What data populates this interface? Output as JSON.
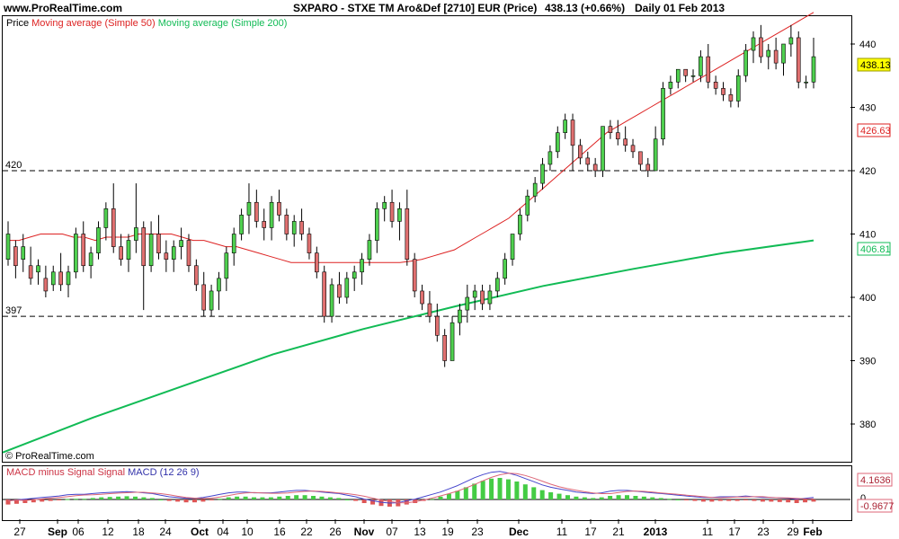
{
  "header": {
    "site": "www.ProRealTime.com",
    "instrument": "SXPARO - STXE TM Aro&Def [2710] EUR (Price)",
    "last_price": "438.13 (+0.66%)",
    "period": "Daily  01 Feb 2013"
  },
  "colors": {
    "up": "#4fd04f",
    "down": "#e07070",
    "ma50": "#dd2222",
    "ma200": "#11bb55",
    "macd": "#4444cc",
    "signal": "#dd6677"
  },
  "price_panel": {
    "legend_price": "Price",
    "legend_ma50": "Moving average (Simple 50)",
    "legend_ma200": "Moving average (Simple 200)",
    "watermark": "© ProRealTime.com",
    "y_ticks": [
      "440",
      "430",
      "420",
      "410",
      "400",
      "390",
      "380"
    ],
    "hlines": [
      {
        "label": "420",
        "value": 420
      },
      {
        "label": "397",
        "value": 397
      }
    ],
    "tags": {
      "price": "438.13",
      "ma50": "426.63",
      "ma200": "406.81"
    }
  },
  "macd_panel": {
    "legend_signal": "MACD minus Signal",
    "legend_signal2": "Signal",
    "legend_macd": "MACD (12 26 9)",
    "tag_high": "4.1636",
    "tag_zero": "0",
    "tag_low": "-0.9677"
  },
  "x_ticks": [
    "27",
    "Sep",
    "06",
    "12",
    "18",
    "24",
    "Oct",
    "04",
    "10",
    "16",
    "22",
    "26",
    "Nov",
    "07",
    "13",
    "19",
    "23",
    "Dec",
    "11",
    "17",
    "21",
    "2013",
    "11",
    "17",
    "23",
    "29",
    "Feb"
  ],
  "chart_data": {
    "type": "candlestick",
    "title": "SXPARO - STXE TM Aro&Def [2710] EUR (Price)",
    "ylim": [
      374,
      450
    ],
    "candles": [
      [
        406,
        412,
        405,
        410
      ],
      [
        408,
        409,
        403,
        405
      ],
      [
        406,
        410,
        404,
        408
      ],
      [
        405,
        408,
        402,
        403
      ],
      [
        404,
        406,
        402,
        405
      ],
      [
        403,
        405,
        400,
        401
      ],
      [
        402,
        405,
        401,
        404
      ],
      [
        404,
        407,
        401,
        402
      ],
      [
        402,
        405,
        400,
        404
      ],
      [
        404,
        411,
        403,
        410
      ],
      [
        410,
        412,
        404,
        405
      ],
      [
        405,
        408,
        403,
        407
      ],
      [
        407,
        412,
        406,
        411
      ],
      [
        411,
        415,
        409,
        414
      ],
      [
        414,
        418,
        407,
        408
      ],
      [
        408,
        410,
        405,
        406
      ],
      [
        406,
        410,
        404,
        409
      ],
      [
        409,
        418,
        407,
        411
      ],
      [
        411,
        412,
        398,
        405
      ],
      [
        405,
        412,
        404,
        410
      ],
      [
        410,
        413,
        406,
        407
      ],
      [
        407,
        409,
        404,
        406
      ],
      [
        406,
        409,
        404,
        408
      ],
      [
        408,
        411,
        406,
        409
      ],
      [
        409,
        410,
        404,
        405
      ],
      [
        405,
        406,
        401,
        402
      ],
      [
        402,
        404,
        397,
        398
      ],
      [
        398,
        402,
        397,
        401
      ],
      [
        401,
        404,
        398,
        403
      ],
      [
        403,
        408,
        401,
        407
      ],
      [
        407,
        411,
        405,
        410
      ],
      [
        410,
        414,
        409,
        413
      ],
      [
        413,
        418,
        410,
        415
      ],
      [
        415,
        417,
        411,
        412
      ],
      [
        412,
        414,
        409,
        411
      ],
      [
        411,
        416,
        409,
        415
      ],
      [
        415,
        417,
        412,
        413
      ],
      [
        413,
        414,
        409,
        410
      ],
      [
        410,
        413,
        408,
        412
      ],
      [
        412,
        414,
        409,
        410
      ],
      [
        410,
        411,
        406,
        407
      ],
      [
        407,
        408,
        403,
        404
      ],
      [
        404,
        405,
        396,
        397
      ],
      [
        397,
        403,
        396,
        402
      ],
      [
        402,
        404,
        399,
        400
      ],
      [
        400,
        404,
        399,
        403
      ],
      [
        403,
        405,
        401,
        404
      ],
      [
        404,
        407,
        402,
        406
      ],
      [
        406,
        410,
        405,
        409
      ],
      [
        409,
        415,
        407,
        414
      ],
      [
        414,
        416,
        412,
        415
      ],
      [
        415,
        417,
        411,
        412
      ],
      [
        412,
        415,
        409,
        414
      ],
      [
        414,
        417,
        405,
        406
      ],
      [
        406,
        407,
        400,
        401
      ],
      [
        401,
        402,
        398,
        399
      ],
      [
        399,
        401,
        396,
        397
      ],
      [
        397,
        399,
        393,
        394
      ],
      [
        394,
        395,
        389,
        390
      ],
      [
        390,
        397,
        390,
        396
      ],
      [
        396,
        399,
        394,
        398
      ],
      [
        398,
        402,
        396,
        400
      ],
      [
        400,
        402,
        398,
        401
      ],
      [
        401,
        402,
        398,
        399
      ],
      [
        399,
        402,
        398,
        401
      ],
      [
        401,
        404,
        400,
        403
      ],
      [
        403,
        407,
        402,
        406
      ],
      [
        406,
        410,
        405,
        410
      ],
      [
        410,
        414,
        409,
        413
      ],
      [
        413,
        417,
        412,
        416
      ],
      [
        416,
        419,
        415,
        418
      ],
      [
        418,
        422,
        417,
        421
      ],
      [
        421,
        424,
        420,
        423
      ],
      [
        423,
        427,
        422,
        426
      ],
      [
        426,
        429,
        425,
        428
      ],
      [
        428,
        429,
        420,
        424
      ],
      [
        424,
        425,
        421,
        422
      ],
      [
        422,
        423,
        420,
        421
      ],
      [
        421,
        422,
        419,
        420
      ],
      [
        420,
        427,
        419,
        427
      ],
      [
        427,
        428,
        425,
        426
      ],
      [
        426,
        428,
        424,
        425
      ],
      [
        425,
        427,
        423,
        424
      ],
      [
        424,
        425,
        422,
        423
      ],
      [
        423,
        423,
        420,
        421
      ],
      [
        421,
        422,
        419,
        420
      ],
      [
        420,
        427,
        420,
        425
      ],
      [
        425,
        434,
        424,
        433
      ],
      [
        433,
        435,
        432,
        434
      ],
      [
        434,
        436,
        433,
        436
      ],
      [
        436,
        436,
        434,
        435
      ],
      [
        435,
        436,
        434,
        435
      ],
      [
        435,
        439,
        434,
        438
      ],
      [
        438,
        440,
        433,
        434
      ],
      [
        434,
        435,
        432,
        433
      ],
      [
        433,
        434,
        431,
        432
      ],
      [
        432,
        433,
        430,
        431
      ],
      [
        431,
        436,
        430,
        435
      ],
      [
        435,
        440,
        434,
        439
      ],
      [
        439,
        442,
        437,
        441
      ],
      [
        441,
        443,
        437,
        438
      ],
      [
        438,
        440,
        436,
        439
      ],
      [
        439,
        441,
        436,
        437
      ],
      [
        437,
        440,
        435,
        440
      ],
      [
        440,
        443,
        438,
        441
      ],
      [
        441,
        442,
        433,
        434
      ],
      [
        434,
        435,
        433,
        434
      ],
      [
        434,
        441,
        433,
        438
      ]
    ],
    "ma50": [
      409,
      409,
      409.5,
      410,
      410,
      410,
      409.5,
      409.5,
      409,
      409.5,
      409.5,
      409.5,
      410,
      410,
      410,
      410,
      409.5,
      409,
      409,
      408.5,
      408,
      408,
      407.5,
      407,
      406.5,
      406,
      405.5,
      405.5,
      405.5,
      405.5,
      405.5,
      405.5,
      405.5,
      405.5,
      405.5,
      405.5,
      405.5,
      405.7,
      406,
      406.5,
      407,
      407.5,
      408.5,
      409.5,
      410.5,
      411.5,
      412.5,
      414,
      415.5,
      417,
      418.5,
      420,
      421.5,
      423,
      424.5,
      426,
      427,
      428,
      429,
      430,
      431,
      432,
      433,
      434,
      435,
      436,
      437,
      438,
      439,
      440,
      441,
      442,
      443,
      444,
      445
    ],
    "ma200": [
      375.5,
      381,
      386,
      391,
      395,
      398.5,
      401.8,
      404.5,
      407,
      409
    ],
    "macd_hist": [
      -0.7,
      -0.6,
      -0.5,
      -0.4,
      -0.3,
      -0.2,
      -0.1,
      0.05,
      0.1,
      0.1,
      0.2,
      0.3,
      0.35,
      0.4,
      0.45,
      0.4,
      0.3,
      0.2,
      0,
      -0.2,
      -0.3,
      -0.4,
      -0.4,
      -0.3,
      -0.1,
      0.1,
      0.3,
      0.4,
      0.4,
      0.3,
      0.3,
      0.3,
      0.4,
      0.5,
      0.6,
      0.6,
      0.5,
      0.4,
      0.3,
      0.2,
      0,
      -0.2,
      -0.5,
      -0.7,
      -0.9,
      -1,
      -0.95,
      -0.7,
      -0.5,
      -0.2,
      0.1,
      0.4,
      0.8,
      1.2,
      1.7,
      2.2,
      2.6,
      2.9,
      3.0,
      2.8,
      2.5,
      2.1,
      1.7,
      1.3,
      1,
      0.8,
      0.6,
      0.4,
      0.3,
      0.2,
      0.3,
      0.5,
      0.6,
      0.6,
      0.5,
      0.4,
      0.3,
      0.2,
      0.1,
      0,
      -0.1,
      -0.2,
      -0.3,
      -0.3,
      -0.2,
      -0.2,
      -0.2,
      -0.1,
      -0.2,
      -0.3,
      -0.3,
      -0.35,
      -0.4,
      -0.5,
      -0.4,
      -0.3
    ]
  }
}
